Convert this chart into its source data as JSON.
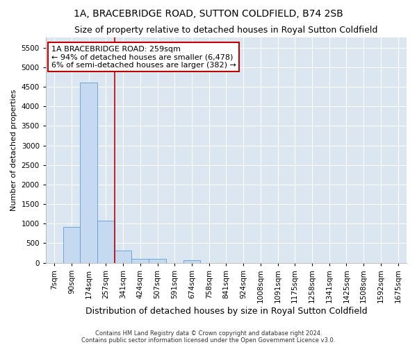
{
  "title": "1A, BRACEBRIDGE ROAD, SUTTON COLDFIELD, B74 2SB",
  "subtitle": "Size of property relative to detached houses in Royal Sutton Coldfield",
  "xlabel": "Distribution of detached houses by size in Royal Sutton Coldfield",
  "ylabel": "Number of detached properties",
  "footer1": "Contains HM Land Registry data © Crown copyright and database right 2024.",
  "footer2": "Contains public sector information licensed under the Open Government Licence v3.0.",
  "categories": [
    "7sqm",
    "90sqm",
    "174sqm",
    "257sqm",
    "341sqm",
    "424sqm",
    "507sqm",
    "591sqm",
    "674sqm",
    "758sqm",
    "841sqm",
    "924sqm",
    "1008sqm",
    "1091sqm",
    "1175sqm",
    "1258sqm",
    "1341sqm",
    "1425sqm",
    "1508sqm",
    "1592sqm",
    "1675sqm"
  ],
  "values": [
    0,
    920,
    4600,
    1080,
    310,
    100,
    95,
    0,
    60,
    0,
    0,
    0,
    0,
    0,
    0,
    0,
    0,
    0,
    0,
    0,
    0
  ],
  "bar_color": "#c5d9f1",
  "bar_edge_color": "#5b9bd5",
  "vline_index": 3.5,
  "vline_color": "#c00000",
  "annotation_line1": "1A BRACEBRIDGE ROAD: 259sqm",
  "annotation_line2": "← 94% of detached houses are smaller (6,478)",
  "annotation_line3": "6% of semi-detached houses are larger (382) →",
  "annotation_box_facecolor": "#ffffff",
  "annotation_box_edgecolor": "#c00000",
  "ylim": [
    0,
    5750
  ],
  "yticks": [
    0,
    500,
    1000,
    1500,
    2000,
    2500,
    3000,
    3500,
    4000,
    4500,
    5000,
    5500
  ],
  "figure_bg": "#ffffff",
  "axes_bg": "#dce6f1",
  "grid_color": "#ffffff",
  "title_fontsize": 10,
  "subtitle_fontsize": 9,
  "tick_fontsize": 7.5,
  "ylabel_fontsize": 8,
  "xlabel_fontsize": 9,
  "footer_fontsize": 6,
  "annotation_fontsize": 8
}
